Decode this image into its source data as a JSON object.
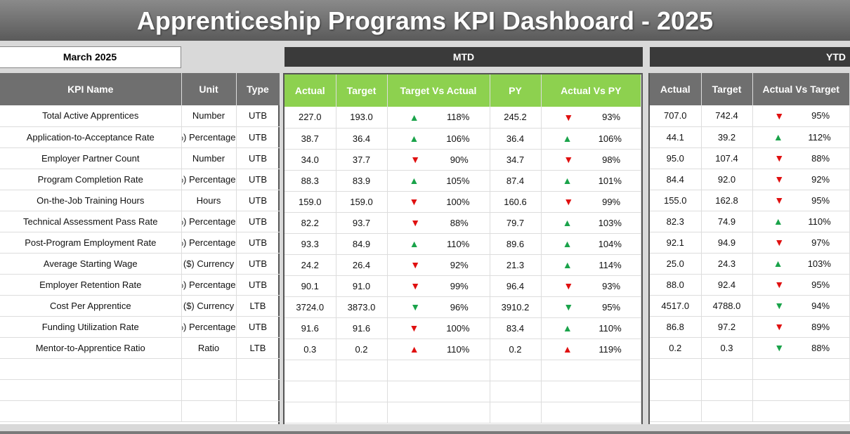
{
  "title": "Apprenticeship Programs KPI Dashboard - 2025",
  "month": "March 2025",
  "sections": {
    "mtd": "MTD",
    "ytd": "YTD"
  },
  "colors": {
    "up_good": "#1aa34a",
    "down_bad": "#e01010",
    "header_green": "#8dd14f",
    "header_gray": "#6f6f6f"
  },
  "headers": {
    "left": [
      "KPI Name",
      "Unit",
      "Type"
    ],
    "mtd": [
      "Actual",
      "Target",
      "Target Vs Actual",
      "PY",
      "Actual Vs PY"
    ],
    "ytd": [
      "Actual",
      "Target",
      "Actual Vs Target"
    ]
  },
  "rows": [
    {
      "kpi": "Total Active Apprentices",
      "unit": "Number",
      "type": "UTB",
      "mtd_actual": "227.0",
      "mtd_target": "193.0",
      "tva_dir": "up",
      "tva_color": "green",
      "tva": "118%",
      "py": "245.2",
      "avpy_dir": "down",
      "avpy_color": "red",
      "avpy": "93%",
      "ytd_actual": "707.0",
      "ytd_target": "742.4",
      "yavt_dir": "down",
      "yavt_color": "red",
      "yavt": "95%"
    },
    {
      "kpi": "Application-to-Acceptance Rate",
      "unit": "Percentage (%)",
      "type": "UTB",
      "mtd_actual": "38.7",
      "mtd_target": "36.4",
      "tva_dir": "up",
      "tva_color": "green",
      "tva": "106%",
      "py": "36.4",
      "avpy_dir": "up",
      "avpy_color": "green",
      "avpy": "106%",
      "ytd_actual": "44.1",
      "ytd_target": "39.2",
      "yavt_dir": "up",
      "yavt_color": "green",
      "yavt": "112%"
    },
    {
      "kpi": "Employer Partner Count",
      "unit": "Number",
      "type": "UTB",
      "mtd_actual": "34.0",
      "mtd_target": "37.7",
      "tva_dir": "down",
      "tva_color": "red",
      "tva": "90%",
      "py": "34.7",
      "avpy_dir": "down",
      "avpy_color": "red",
      "avpy": "98%",
      "ytd_actual": "95.0",
      "ytd_target": "107.4",
      "yavt_dir": "down",
      "yavt_color": "red",
      "yavt": "88%"
    },
    {
      "kpi": "Program Completion Rate",
      "unit": "Percentage (%)",
      "type": "UTB",
      "mtd_actual": "88.3",
      "mtd_target": "83.9",
      "tva_dir": "up",
      "tva_color": "green",
      "tva": "105%",
      "py": "87.4",
      "avpy_dir": "up",
      "avpy_color": "green",
      "avpy": "101%",
      "ytd_actual": "84.4",
      "ytd_target": "92.0",
      "yavt_dir": "down",
      "yavt_color": "red",
      "yavt": "92%"
    },
    {
      "kpi": "On-the-Job Training Hours",
      "unit": "Hours",
      "type": "UTB",
      "mtd_actual": "159.0",
      "mtd_target": "159.0",
      "tva_dir": "down",
      "tva_color": "red",
      "tva": "100%",
      "py": "160.6",
      "avpy_dir": "down",
      "avpy_color": "red",
      "avpy": "99%",
      "ytd_actual": "155.0",
      "ytd_target": "162.8",
      "yavt_dir": "down",
      "yavt_color": "red",
      "yavt": "95%"
    },
    {
      "kpi": "Technical Assessment Pass Rate",
      "unit": "Percentage (%)",
      "type": "UTB",
      "mtd_actual": "82.2",
      "mtd_target": "93.7",
      "tva_dir": "down",
      "tva_color": "red",
      "tva": "88%",
      "py": "79.7",
      "avpy_dir": "up",
      "avpy_color": "green",
      "avpy": "103%",
      "ytd_actual": "82.3",
      "ytd_target": "74.9",
      "yavt_dir": "up",
      "yavt_color": "green",
      "yavt": "110%"
    },
    {
      "kpi": "Post-Program Employment Rate",
      "unit": "Percentage (%)",
      "type": "UTB",
      "mtd_actual": "93.3",
      "mtd_target": "84.9",
      "tva_dir": "up",
      "tva_color": "green",
      "tva": "110%",
      "py": "89.6",
      "avpy_dir": "up",
      "avpy_color": "green",
      "avpy": "104%",
      "ytd_actual": "92.1",
      "ytd_target": "94.9",
      "yavt_dir": "down",
      "yavt_color": "red",
      "yavt": "97%"
    },
    {
      "kpi": "Average Starting Wage",
      "unit": "Currency ($)",
      "type": "UTB",
      "mtd_actual": "24.2",
      "mtd_target": "26.4",
      "tva_dir": "down",
      "tva_color": "red",
      "tva": "92%",
      "py": "21.3",
      "avpy_dir": "up",
      "avpy_color": "green",
      "avpy": "114%",
      "ytd_actual": "25.0",
      "ytd_target": "24.3",
      "yavt_dir": "up",
      "yavt_color": "green",
      "yavt": "103%"
    },
    {
      "kpi": "Employer Retention Rate",
      "unit": "Percentage (%)",
      "type": "UTB",
      "mtd_actual": "90.1",
      "mtd_target": "91.0",
      "tva_dir": "down",
      "tva_color": "red",
      "tva": "99%",
      "py": "96.4",
      "avpy_dir": "down",
      "avpy_color": "red",
      "avpy": "93%",
      "ytd_actual": "88.0",
      "ytd_target": "92.4",
      "yavt_dir": "down",
      "yavt_color": "red",
      "yavt": "95%"
    },
    {
      "kpi": "Cost Per Apprentice",
      "unit": "Currency ($)",
      "type": "LTB",
      "mtd_actual": "3724.0",
      "mtd_target": "3873.0",
      "tva_dir": "down",
      "tva_color": "green",
      "tva": "96%",
      "py": "3910.2",
      "avpy_dir": "down",
      "avpy_color": "green",
      "avpy": "95%",
      "ytd_actual": "4517.0",
      "ytd_target": "4788.0",
      "yavt_dir": "down",
      "yavt_color": "green",
      "yavt": "94%"
    },
    {
      "kpi": "Funding Utilization Rate",
      "unit": "Percentage (%)",
      "type": "UTB",
      "mtd_actual": "91.6",
      "mtd_target": "91.6",
      "tva_dir": "down",
      "tva_color": "red",
      "tva": "100%",
      "py": "83.4",
      "avpy_dir": "up",
      "avpy_color": "green",
      "avpy": "110%",
      "ytd_actual": "86.8",
      "ytd_target": "97.2",
      "yavt_dir": "down",
      "yavt_color": "red",
      "yavt": "89%"
    },
    {
      "kpi": "Mentor-to-Apprentice Ratio",
      "unit": "Ratio",
      "type": "LTB",
      "mtd_actual": "0.3",
      "mtd_target": "0.2",
      "tva_dir": "up",
      "tva_color": "red",
      "tva": "110%",
      "py": "0.2",
      "avpy_dir": "up",
      "avpy_color": "red",
      "avpy": "119%",
      "ytd_actual": "0.2",
      "ytd_target": "0.3",
      "yavt_dir": "down",
      "yavt_color": "green",
      "yavt": "88%"
    }
  ]
}
